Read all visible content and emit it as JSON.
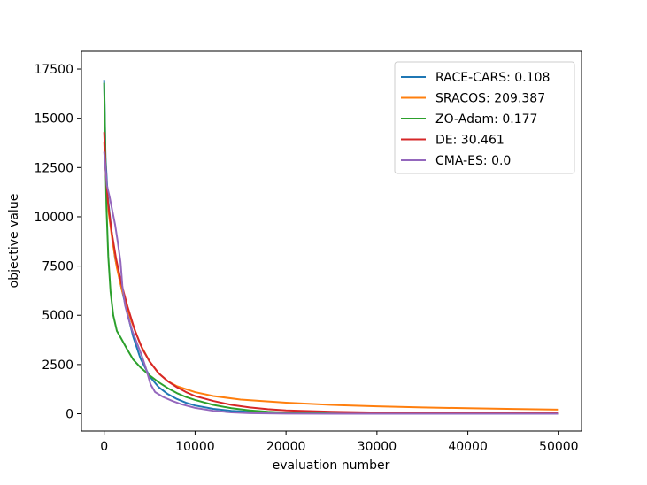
{
  "chart_data": {
    "type": "line",
    "title": "",
    "xlabel": "evaluation number",
    "ylabel": "objective value",
    "xlim": [
      -2500,
      52500
    ],
    "ylim": [
      -875,
      18400
    ],
    "xticks": [
      0,
      10000,
      20000,
      30000,
      40000,
      50000
    ],
    "yticks": [
      0,
      2500,
      5000,
      7500,
      10000,
      12500,
      15000,
      17500
    ],
    "grid": false,
    "legend_position": "top-right",
    "series": [
      {
        "name": "RACE-CARS: 0.108",
        "color": "#1f77b4",
        "points": [
          [
            0,
            16950
          ],
          [
            150,
            13000
          ],
          [
            400,
            11000
          ],
          [
            800,
            9300
          ],
          [
            1200,
            7900
          ],
          [
            1800,
            6600
          ],
          [
            2500,
            5200
          ],
          [
            3200,
            3900
          ],
          [
            4000,
            2800
          ],
          [
            5000,
            1900
          ],
          [
            6000,
            1350
          ],
          [
            7000,
            1000
          ],
          [
            8000,
            750
          ],
          [
            9000,
            560
          ],
          [
            10000,
            420
          ],
          [
            12000,
            250
          ],
          [
            14000,
            150
          ],
          [
            16000,
            95
          ],
          [
            20000,
            40
          ],
          [
            25000,
            15
          ],
          [
            30000,
            5
          ],
          [
            40000,
            1
          ],
          [
            50000,
            0.108
          ]
        ]
      },
      {
        "name": "SRACOS: 209.387",
        "color": "#ff7f0e",
        "points": [
          [
            0,
            13800
          ],
          [
            200,
            12000
          ],
          [
            500,
            10200
          ],
          [
            900,
            8800
          ],
          [
            1400,
            7400
          ],
          [
            2000,
            6200
          ],
          [
            3000,
            4700
          ],
          [
            4000,
            3500
          ],
          [
            5000,
            2650
          ],
          [
            6000,
            2050
          ],
          [
            7000,
            1650
          ],
          [
            8000,
            1400
          ],
          [
            10000,
            1100
          ],
          [
            12000,
            900
          ],
          [
            15000,
            720
          ],
          [
            20000,
            560
          ],
          [
            25000,
            450
          ],
          [
            30000,
            380
          ],
          [
            35000,
            320
          ],
          [
            40000,
            280
          ],
          [
            45000,
            240
          ],
          [
            50000,
            209
          ]
        ]
      },
      {
        "name": "ZO-Adam: 0.177",
        "color": "#2ca02c",
        "points": [
          [
            0,
            16800
          ],
          [
            100,
            14000
          ],
          [
            250,
            10500
          ],
          [
            450,
            8000
          ],
          [
            700,
            6200
          ],
          [
            1000,
            5000
          ],
          [
            1400,
            4200
          ],
          [
            1900,
            3800
          ],
          [
            2500,
            3300
          ],
          [
            3200,
            2750
          ],
          [
            4000,
            2350
          ],
          [
            5000,
            1950
          ],
          [
            6000,
            1600
          ],
          [
            7000,
            1300
          ],
          [
            8000,
            1050
          ],
          [
            9000,
            850
          ],
          [
            10000,
            700
          ],
          [
            12000,
            450
          ],
          [
            14000,
            280
          ],
          [
            16000,
            170
          ],
          [
            18000,
            100
          ],
          [
            20000,
            60
          ],
          [
            25000,
            20
          ],
          [
            30000,
            6
          ],
          [
            40000,
            1
          ],
          [
            50000,
            0.177
          ]
        ]
      },
      {
        "name": "DE: 30.461",
        "color": "#d62728",
        "points": [
          [
            0,
            14300
          ],
          [
            150,
            12500
          ],
          [
            400,
            10800
          ],
          [
            800,
            9300
          ],
          [
            1300,
            7900
          ],
          [
            1900,
            6600
          ],
          [
            2600,
            5400
          ],
          [
            3400,
            4200
          ],
          [
            4200,
            3300
          ],
          [
            5000,
            2650
          ],
          [
            6000,
            2050
          ],
          [
            7000,
            1650
          ],
          [
            8000,
            1350
          ],
          [
            9000,
            1100
          ],
          [
            10000,
            900
          ],
          [
            12000,
            650
          ],
          [
            14000,
            450
          ],
          [
            16000,
            320
          ],
          [
            18000,
            230
          ],
          [
            20000,
            170
          ],
          [
            25000,
            100
          ],
          [
            30000,
            65
          ],
          [
            40000,
            40
          ],
          [
            50000,
            30
          ]
        ]
      },
      {
        "name": "CMA-ES: 0.0",
        "color": "#9467bd",
        "points": [
          [
            0,
            13300
          ],
          [
            300,
            11600
          ],
          [
            600,
            11000
          ],
          [
            900,
            10300
          ],
          [
            1200,
            9600
          ],
          [
            1500,
            8700
          ],
          [
            1800,
            7700
          ],
          [
            2000,
            6500
          ],
          [
            2300,
            5500
          ],
          [
            2700,
            4800
          ],
          [
            3100,
            4200
          ],
          [
            3600,
            3600
          ],
          [
            4100,
            3000
          ],
          [
            4600,
            2300
          ],
          [
            5100,
            1500
          ],
          [
            5600,
            1100
          ],
          [
            6500,
            850
          ],
          [
            7500,
            650
          ],
          [
            8500,
            480
          ],
          [
            10000,
            300
          ],
          [
            12000,
            150
          ],
          [
            14000,
            70
          ],
          [
            16000,
            30
          ],
          [
            20000,
            5
          ],
          [
            30000,
            0.5
          ],
          [
            50000,
            0
          ]
        ]
      }
    ]
  }
}
